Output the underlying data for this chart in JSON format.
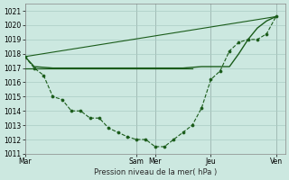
{
  "xlabel": "Pression niveau de la mer( hPa )",
  "ylim": [
    1011,
    1021.5
  ],
  "yticks": [
    1011,
    1012,
    1013,
    1014,
    1015,
    1016,
    1017,
    1018,
    1019,
    1020,
    1021
  ],
  "bg_color": "#cce8e0",
  "grid_color": "#aaccc4",
  "line_color": "#1a5c1a",
  "day_labels": [
    "Mar",
    "Sam",
    "Mer",
    "Jeu",
    "Ven"
  ],
  "day_positions": [
    0,
    12,
    14,
    20,
    27
  ],
  "xlim": [
    0,
    28
  ],
  "line1_x": [
    0,
    1,
    2,
    3,
    4,
    5,
    6,
    7,
    8,
    9,
    10,
    11,
    12,
    13,
    14,
    15,
    16,
    17,
    18,
    19,
    20,
    21,
    22,
    23,
    24,
    25,
    26,
    27
  ],
  "line1_y": [
    1017.8,
    1017.0,
    1016.5,
    1015.0,
    1014.8,
    1014.0,
    1014.0,
    1013.5,
    1013.5,
    1012.8,
    1012.5,
    1012.2,
    1012.0,
    1012.0,
    1011.5,
    1011.5,
    1012.0,
    1012.5,
    1013.0,
    1014.2,
    1016.2,
    1016.8,
    1018.2,
    1018.8,
    1019.0,
    1019.0,
    1019.4,
    1020.6
  ],
  "line2_x": [
    0,
    1,
    2,
    3,
    4,
    5,
    6,
    7,
    8,
    9,
    10,
    11,
    12,
    13,
    14,
    15,
    16,
    17,
    18,
    19,
    20,
    21,
    22,
    23,
    24,
    25,
    26,
    27
  ],
  "line2_y": [
    1017.8,
    1017.1,
    1017.05,
    1017.0,
    1017.0,
    1017.0,
    1017.0,
    1017.0,
    1017.0,
    1017.0,
    1017.0,
    1017.0,
    1017.0,
    1017.0,
    1017.0,
    1017.0,
    1017.0,
    1017.0,
    1017.05,
    1017.1,
    1017.1,
    1017.1,
    1017.1,
    1018.0,
    1019.0,
    1019.8,
    1020.3,
    1020.6
  ],
  "line3_x": [
    0,
    27
  ],
  "line3_y": [
    1017.8,
    1020.6
  ],
  "line4_x": [
    0,
    18
  ],
  "line4_y": [
    1017.0,
    1017.0
  ]
}
